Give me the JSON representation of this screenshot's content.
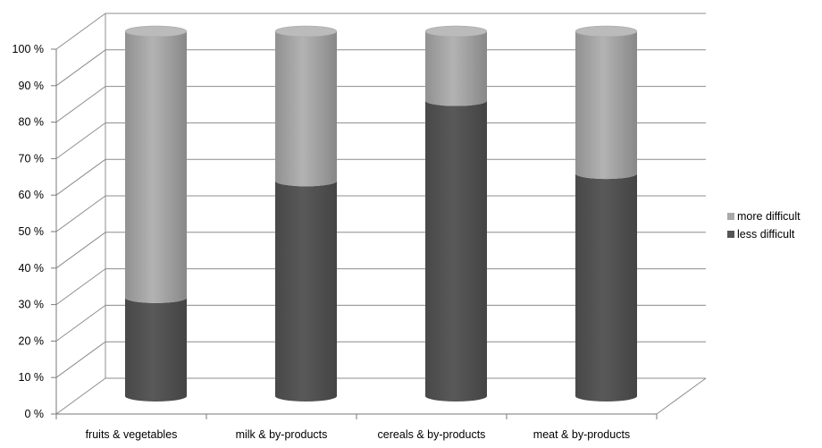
{
  "chart_data": {
    "type": "bar",
    "subtype": "stacked-100-percent-3d-cylinder",
    "title": "",
    "xlabel": "",
    "ylabel": "",
    "categories": [
      "fruits & vegetables",
      "milk & by-products",
      "cereals & by-products",
      "meat & by-products"
    ],
    "series": [
      {
        "name": "less difficult",
        "values": [
          27,
          59,
          81,
          61
        ],
        "color": "#555555"
      },
      {
        "name": "more difficult",
        "values": [
          73,
          41,
          19,
          39
        ],
        "color": "#aaaaaa"
      }
    ],
    "ylim": [
      0,
      100
    ],
    "yticks": [
      "0 %",
      "10 %",
      "20 %",
      "30 %",
      "40 %",
      "50 %",
      "60 %",
      "70 %",
      "80 %",
      "90 %",
      "100 %"
    ],
    "grid": true,
    "legend": {
      "position": "right",
      "entries": [
        "more difficult",
        "less difficult"
      ]
    }
  }
}
